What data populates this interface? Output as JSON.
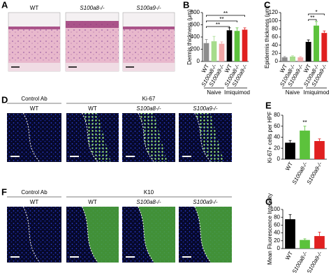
{
  "panel_labels": [
    "A",
    "B",
    "C",
    "D",
    "E",
    "F",
    "G"
  ],
  "panel_a": {
    "labels": [
      "WT",
      "S100a8-/-",
      "S100a9-/-"
    ]
  },
  "panel_d": {
    "group_labels": [
      "Control Ab",
      "Ki-67"
    ],
    "labels": [
      "WT",
      "WT",
      "S100a8-/-",
      "S100a9-/-"
    ]
  },
  "panel_f": {
    "group_labels": [
      "Control Ab",
      "K10"
    ],
    "labels": [
      "WT",
      "WT",
      "S100a8-/-",
      "S100a9-/-"
    ]
  },
  "chart_data": [
    {
      "type": "bar",
      "y_label": "Dermis thickness (μm)",
      "categories": [
        "WT",
        "S100a8-/-",
        "S100a9-/-",
        "WT",
        "S100a8-/-",
        "S100a9-/-"
      ],
      "groups": [
        "Naive",
        "Imiquimod"
      ],
      "values": [
        300,
        330,
        290,
        510,
        500,
        520
      ],
      "errors": [
        60,
        80,
        30,
        40,
        50,
        30
      ],
      "colors": [
        "#8c8c8c",
        "#a6dc8c",
        "#f2a6a6",
        "#000000",
        "#5cc23c",
        "#e02020"
      ],
      "ylim": [
        0,
        800
      ],
      "yticks": [
        0,
        200,
        400,
        600,
        800
      ],
      "annotations": [
        "**",
        "**",
        "**"
      ]
    },
    {
      "type": "bar",
      "y_label": "Epidermis thickness (μm)",
      "categories": [
        "WT",
        "S100a8-/-",
        "S100a9-/-",
        "WT",
        "S100a8-/-",
        "S100a9-/-"
      ],
      "groups": [
        "Naive",
        "Imiquimod"
      ],
      "values": [
        10,
        12,
        10,
        48,
        88,
        70
      ],
      "errors": [
        2,
        2,
        2,
        5,
        10,
        5
      ],
      "colors": [
        "#8c8c8c",
        "#a6dc8c",
        "#f2a6a6",
        "#000000",
        "#5cc23c",
        "#e02020"
      ],
      "ylim": [
        0,
        120
      ],
      "yticks": [
        0,
        20,
        40,
        60,
        80,
        100,
        120
      ],
      "annotations": [
        "*",
        "**"
      ]
    },
    {
      "type": "bar",
      "y_label": "Ki-67+ cells per HPF",
      "categories": [
        "WT",
        "S100a8-/-",
        "S100a9-/-"
      ],
      "values": [
        30,
        52,
        33
      ],
      "errors": [
        4,
        8,
        4
      ],
      "colors": [
        "#000000",
        "#5cc23c",
        "#e02020"
      ],
      "ylim": [
        0,
        80
      ],
      "yticks": [
        0,
        20,
        40,
        60,
        80
      ],
      "annotations": [
        "**"
      ]
    },
    {
      "type": "bar",
      "y_label": "Mean Fluorescence Intensity",
      "categories": [
        "WT",
        "S100a8-/-",
        "S100a9-/-"
      ],
      "values": [
        75,
        22,
        32
      ],
      "errors": [
        12,
        3,
        10
      ],
      "colors": [
        "#000000",
        "#5cc23c",
        "#e02020"
      ],
      "ylim": [
        0,
        100
      ],
      "yticks": [
        0,
        20,
        40,
        60,
        80,
        100
      ],
      "annotations": []
    }
  ]
}
